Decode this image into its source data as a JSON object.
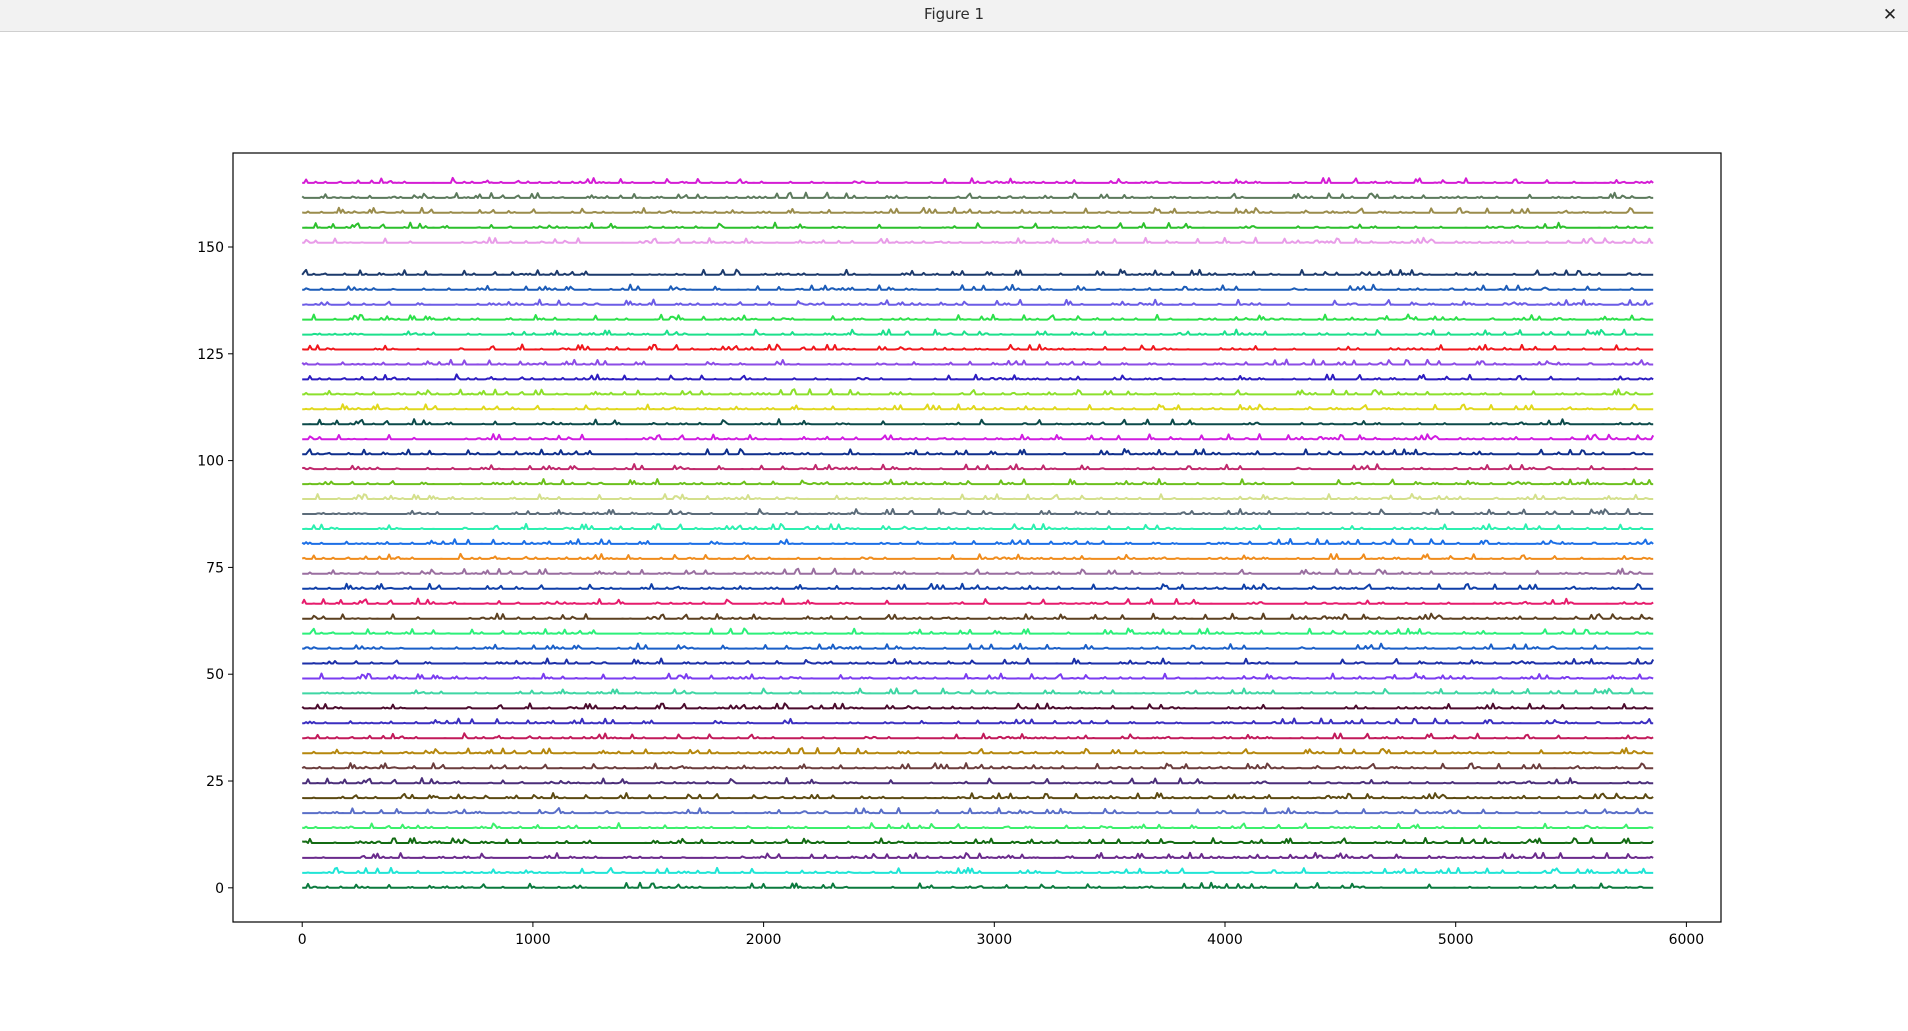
{
  "window": {
    "title": "Figure 1",
    "close_glyph": "✕",
    "close_icon": "close-icon"
  },
  "chart_data": {
    "type": "line",
    "title": "",
    "xlabel": "",
    "ylabel": "",
    "xlim": [
      -300,
      6150
    ],
    "ylim": [
      -8,
      172
    ],
    "x_ticks": [
      0,
      1000,
      2000,
      3000,
      4000,
      5000,
      6000
    ],
    "y_ticks": [
      0,
      25,
      50,
      75,
      100,
      125,
      150
    ],
    "x_range": [
      0,
      5856
    ],
    "grid": false,
    "legend": "none",
    "series": [
      {
        "baseline": 0.0,
        "color": "#0b7a3e"
      },
      {
        "baseline": 3.5,
        "color": "#20e5d6"
      },
      {
        "baseline": 7.0,
        "color": "#6a2a8c"
      },
      {
        "baseline": 10.5,
        "color": "#136b13"
      },
      {
        "baseline": 14.0,
        "color": "#3cf06c"
      },
      {
        "baseline": 17.5,
        "color": "#5a6fc8"
      },
      {
        "baseline": 21.0,
        "color": "#5c4a12"
      },
      {
        "baseline": 24.5,
        "color": "#4b2f7a"
      },
      {
        "baseline": 28.0,
        "color": "#6b3d3d"
      },
      {
        "baseline": 31.5,
        "color": "#b5870d"
      },
      {
        "baseline": 35.0,
        "color": "#c21a5a"
      },
      {
        "baseline": 38.5,
        "color": "#3b2fc0"
      },
      {
        "baseline": 42.0,
        "color": "#4a0a2c"
      },
      {
        "baseline": 45.5,
        "color": "#3fd6a4"
      },
      {
        "baseline": 49.0,
        "color": "#7b3cf0"
      },
      {
        "baseline": 52.5,
        "color": "#1c2fa8"
      },
      {
        "baseline": 56.0,
        "color": "#1a5fc8"
      },
      {
        "baseline": 59.5,
        "color": "#2cf07a"
      },
      {
        "baseline": 63.0,
        "color": "#5c4020"
      },
      {
        "baseline": 66.5,
        "color": "#e61c6c"
      },
      {
        "baseline": 70.0,
        "color": "#0f3fa8"
      },
      {
        "baseline": 73.5,
        "color": "#9a6fa0"
      },
      {
        "baseline": 77.0,
        "color": "#f08c1c"
      },
      {
        "baseline": 80.5,
        "color": "#1c6fe6"
      },
      {
        "baseline": 84.0,
        "color": "#2cf0b0"
      },
      {
        "baseline": 87.5,
        "color": "#5c6c7a"
      },
      {
        "baseline": 91.0,
        "color": "#d4e08c"
      },
      {
        "baseline": 94.5,
        "color": "#6cc01c"
      },
      {
        "baseline": 98.0,
        "color": "#c0286c"
      },
      {
        "baseline": 101.5,
        "color": "#0f2f8c"
      },
      {
        "baseline": 105.0,
        "color": "#d01ce0"
      },
      {
        "baseline": 108.5,
        "color": "#0c4a4a"
      },
      {
        "baseline": 112.0,
        "color": "#e0d81c"
      },
      {
        "baseline": 115.5,
        "color": "#8ce02c"
      },
      {
        "baseline": 119.0,
        "color": "#2c1cc0"
      },
      {
        "baseline": 122.5,
        "color": "#8c4ce6"
      },
      {
        "baseline": 126.0,
        "color": "#f0161c"
      },
      {
        "baseline": 129.5,
        "color": "#1ce08c"
      },
      {
        "baseline": 133.0,
        "color": "#2ce04a"
      },
      {
        "baseline": 136.5,
        "color": "#6c5ce6"
      },
      {
        "baseline": 140.0,
        "color": "#1c5cb8"
      },
      {
        "baseline": 143.5,
        "color": "#1c3a6c"
      },
      {
        "baseline": 151.0,
        "color": "#e89ce8"
      },
      {
        "baseline": 154.5,
        "color": "#2cc02c"
      },
      {
        "baseline": 158.0,
        "color": "#9a8c4c"
      },
      {
        "baseline": 161.5,
        "color": "#5c7a5c"
      },
      {
        "baseline": 165.0,
        "color": "#d41cd4"
      }
    ]
  }
}
